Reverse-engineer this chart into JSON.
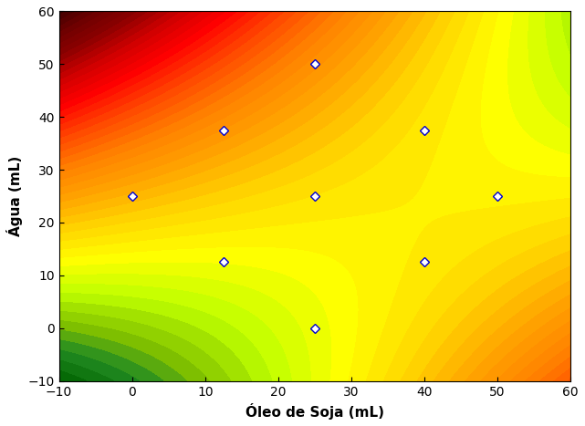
{
  "xlabel": "Óleo de Soja (mL)",
  "ylabel": "Água (mL)",
  "xlim": [
    -10,
    60
  ],
  "ylim": [
    -10,
    60
  ],
  "xticks": [
    -10,
    0,
    10,
    20,
    30,
    40,
    50,
    60
  ],
  "yticks": [
    -10,
    0,
    10,
    20,
    30,
    40,
    50,
    60
  ],
  "data_points": [
    [
      0,
      25
    ],
    [
      12.5,
      37.5
    ],
    [
      12.5,
      12.5
    ],
    [
      25,
      25
    ],
    [
      25,
      0
    ],
    [
      25,
      50
    ],
    [
      40,
      37.5
    ],
    [
      40,
      12.5
    ],
    [
      50,
      25
    ]
  ],
  "figsize": [
    6.41,
    4.67
  ],
  "dpi": 100
}
